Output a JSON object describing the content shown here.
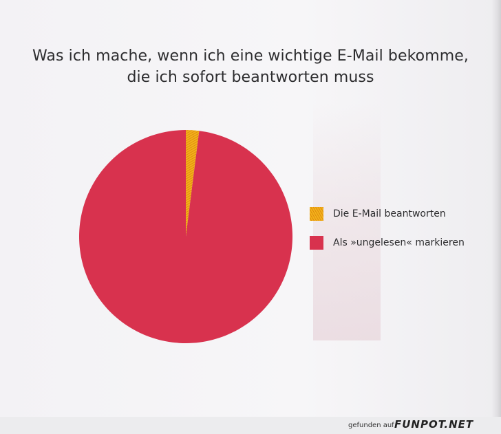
{
  "chart_data": {
    "type": "pie",
    "title": "Was ich mache, wenn ich eine wichtige E-Mail bekomme,",
    "subtitle": "die ich sofort beantworten muss",
    "legend_position": "right",
    "slices": [
      {
        "label": "Die E-Mail beantworten",
        "value": 2,
        "color": "#f2b21a"
      },
      {
        "label": "Als »ungelesen« markieren",
        "value": 98,
        "color": "#d8324e"
      }
    ]
  },
  "watermark": {
    "prefix": "gefunden auf",
    "logo": "FUNPOT.NET"
  }
}
